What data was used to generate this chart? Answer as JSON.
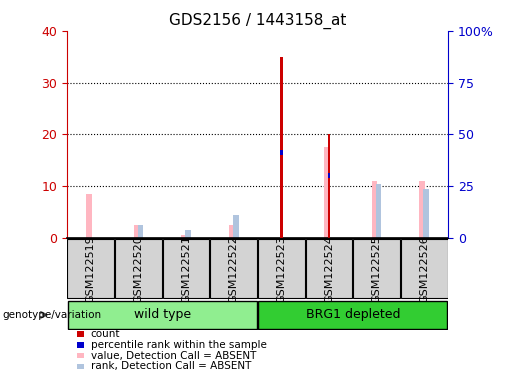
{
  "title": "GDS2156 / 1443158_at",
  "samples": [
    "GSM122519",
    "GSM122520",
    "GSM122521",
    "GSM122522",
    "GSM122523",
    "GSM122524",
    "GSM122525",
    "GSM122526"
  ],
  "groups": [
    {
      "name": "wild type",
      "indices": [
        0,
        1,
        2,
        3
      ],
      "color": "#90ee90"
    },
    {
      "name": "BRG1 depleted",
      "indices": [
        4,
        5,
        6,
        7
      ],
      "color": "#32cd32"
    }
  ],
  "count_values": [
    0,
    0,
    0,
    0,
    35,
    20,
    0,
    0
  ],
  "percentile_rank_values": [
    0,
    0,
    0,
    0,
    16.5,
    12,
    0,
    0
  ],
  "absent_value_values": [
    8.5,
    2.5,
    0.5,
    2.5,
    0,
    17.5,
    11,
    11
  ],
  "absent_rank_values": [
    0,
    2.5,
    1.5,
    4.5,
    0,
    0,
    10.5,
    9.5
  ],
  "left_ylim": [
    0,
    40
  ],
  "left_yticks": [
    0,
    10,
    20,
    30,
    40
  ],
  "right_ylim": [
    0,
    100
  ],
  "right_yticks": [
    0,
    25,
    50,
    75,
    100
  ],
  "right_yticklabels": [
    "0",
    "25",
    "50",
    "75",
    "100%"
  ],
  "count_color": "#cc0000",
  "percentile_rank_color": "#0000cc",
  "absent_value_color": "#ffb6c1",
  "absent_rank_color": "#b0c4de",
  "group_label": "genotype/variation",
  "absent_bar_width": 0.12,
  "count_bar_width": 0.06,
  "bg_color": "#d3d3d3",
  "plot_bg": "#ffffff",
  "grid_color": "#000000",
  "tick_label_fontsize": 8,
  "title_fontsize": 11
}
